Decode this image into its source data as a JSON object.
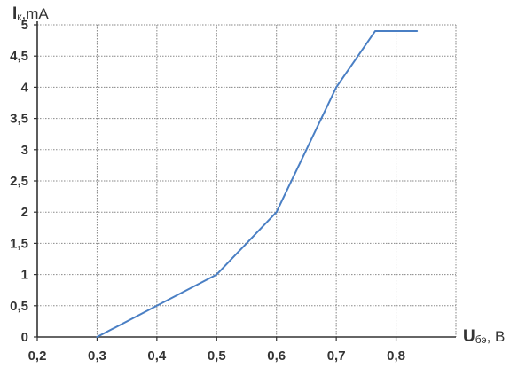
{
  "chart_data": {
    "type": "line",
    "title": "",
    "ylabel_main": "I",
    "ylabel_sub": "к",
    "ylabel_unit": ",mA",
    "xlabel_main": "U",
    "xlabel_sub": "бэ",
    "xlabel_unit": ", B",
    "xlim": [
      0.2,
      0.9
    ],
    "ylim": [
      0,
      5
    ],
    "x_ticks": [
      0.2,
      0.3,
      0.4,
      0.5,
      0.6,
      0.7,
      0.8
    ],
    "x_tick_labels": [
      "0,2",
      "0,3",
      "0,4",
      "0,5",
      "0,6",
      "0,7",
      "0,8"
    ],
    "y_ticks": [
      0,
      0.5,
      1,
      1.5,
      2,
      2.5,
      3,
      3.5,
      4,
      4.5,
      5
    ],
    "y_tick_labels": [
      "0",
      "0,5",
      "1",
      "1,5",
      "2",
      "2,5",
      "3",
      "3,5",
      "4",
      "4,5",
      "5"
    ],
    "grid": true,
    "series": [
      {
        "x": [
          0.3,
          0.4,
          0.5,
          0.6,
          0.7,
          0.765,
          0.835
        ],
        "y": [
          0,
          0.5,
          1.0,
          2.0,
          4.0,
          4.9,
          4.9
        ]
      }
    ],
    "colors": {
      "line": "#4a7fc4",
      "grid": "#888888",
      "axis": "#333333"
    }
  }
}
